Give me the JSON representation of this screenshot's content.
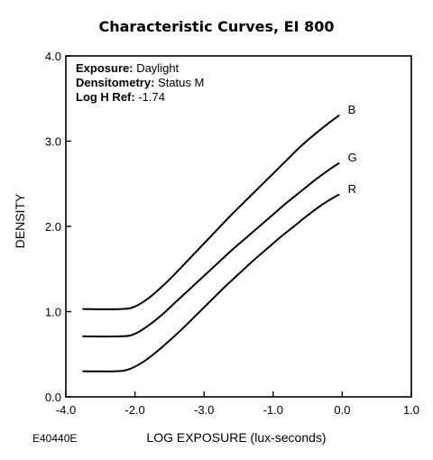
{
  "chart_data": {
    "type": "line",
    "title": "Characteristic Curves, EI 800",
    "xlabel": "LOG EXPOSURE (lux-seconds)",
    "ylabel": "DENSITY",
    "xlim": [
      -4.0,
      1.0
    ],
    "ylim": [
      0.0,
      4.0
    ],
    "x_tick_labels": [
      "-4.0",
      "-2.0",
      "-3.0",
      "-1.0",
      "0.0",
      "1.0"
    ],
    "y_tick_labels": [
      "0.0",
      "1.0",
      "2.0",
      "3.0",
      "4.0"
    ],
    "grid": false,
    "annotations": [
      {
        "key": "Exposure:",
        "value": " Daylight"
      },
      {
        "key": "Densitometry:",
        "value": " Status M"
      },
      {
        "key": "Log H Ref:",
        "value": " -1.74"
      }
    ],
    "figure_code": "E40440E",
    "series": [
      {
        "name": "B",
        "color": "#000000",
        "points": [
          [
            -3.75,
            1.03
          ],
          [
            -3.2,
            1.03
          ],
          [
            -3.0,
            1.06
          ],
          [
            -2.8,
            1.16
          ],
          [
            -2.6,
            1.3
          ],
          [
            -2.4,
            1.46
          ],
          [
            -2.2,
            1.63
          ],
          [
            -2.0,
            1.8
          ],
          [
            -1.8,
            1.97
          ],
          [
            -1.6,
            2.14
          ],
          [
            -1.4,
            2.3
          ],
          [
            -1.2,
            2.46
          ],
          [
            -1.0,
            2.62
          ],
          [
            -0.8,
            2.78
          ],
          [
            -0.6,
            2.94
          ],
          [
            -0.4,
            3.08
          ],
          [
            -0.2,
            3.21
          ],
          [
            -0.05,
            3.3
          ]
        ]
      },
      {
        "name": "G",
        "color": "#000000",
        "points": [
          [
            -3.75,
            0.71
          ],
          [
            -3.2,
            0.71
          ],
          [
            -3.0,
            0.74
          ],
          [
            -2.8,
            0.84
          ],
          [
            -2.6,
            0.97
          ],
          [
            -2.4,
            1.12
          ],
          [
            -2.2,
            1.27
          ],
          [
            -2.0,
            1.42
          ],
          [
            -1.8,
            1.57
          ],
          [
            -1.6,
            1.72
          ],
          [
            -1.4,
            1.86
          ],
          [
            -1.2,
            2.0
          ],
          [
            -1.0,
            2.14
          ],
          [
            -0.8,
            2.28
          ],
          [
            -0.6,
            2.41
          ],
          [
            -0.4,
            2.54
          ],
          [
            -0.2,
            2.66
          ],
          [
            -0.05,
            2.74
          ]
        ]
      },
      {
        "name": "R",
        "color": "#000000",
        "points": [
          [
            -3.75,
            0.3
          ],
          [
            -3.3,
            0.3
          ],
          [
            -3.1,
            0.32
          ],
          [
            -2.9,
            0.4
          ],
          [
            -2.7,
            0.52
          ],
          [
            -2.5,
            0.66
          ],
          [
            -2.3,
            0.81
          ],
          [
            -2.1,
            0.97
          ],
          [
            -1.9,
            1.13
          ],
          [
            -1.7,
            1.29
          ],
          [
            -1.5,
            1.44
          ],
          [
            -1.3,
            1.59
          ],
          [
            -1.1,
            1.73
          ],
          [
            -0.9,
            1.87
          ],
          [
            -0.7,
            2.0
          ],
          [
            -0.5,
            2.13
          ],
          [
            -0.3,
            2.25
          ],
          [
            -0.1,
            2.35
          ],
          [
            -0.05,
            2.37
          ]
        ]
      }
    ]
  }
}
